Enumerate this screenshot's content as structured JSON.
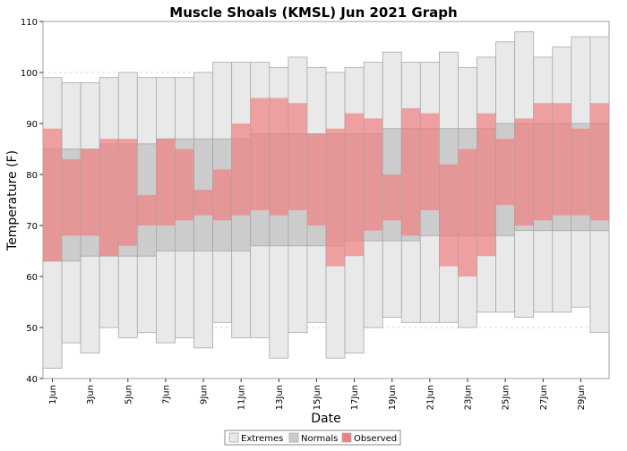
{
  "chart_data": {
    "type": "bar",
    "title": "Muscle Shoals (KMSL) Jun 2021 Graph",
    "xlabel": "Date",
    "ylabel": "Temperature (F)",
    "ylim": [
      40,
      110
    ],
    "yticks": [
      40,
      50,
      60,
      70,
      80,
      90,
      100,
      110
    ],
    "grid": true,
    "legend_placement": "bottom-center",
    "categories": [
      "1Jun",
      "2Jun",
      "3Jun",
      "4Jun",
      "5Jun",
      "6Jun",
      "7Jun",
      "8Jun",
      "9Jun",
      "10Jun",
      "11Jun",
      "12Jun",
      "13Jun",
      "14Jun",
      "15Jun",
      "16Jun",
      "17Jun",
      "18Jun",
      "19Jun",
      "20Jun",
      "21Jun",
      "22Jun",
      "23Jun",
      "24Jun",
      "25Jun",
      "26Jun",
      "27Jun",
      "28Jun",
      "29Jun",
      "30Jun"
    ],
    "tick_labels": [
      "1Jun",
      "3Jun",
      "5Jun",
      "7Jun",
      "9Jun",
      "11Jun",
      "13Jun",
      "15Jun",
      "17Jun",
      "19Jun",
      "21Jun",
      "23Jun",
      "25Jun",
      "27Jun",
      "29Jun"
    ],
    "colors": {
      "extremes": "#e9e9e9",
      "normals": "#cccccc",
      "observed": "#f08080",
      "grid": "#d8d8d8",
      "border": "#a9a9a9"
    },
    "series": [
      {
        "name": "Extremes",
        "high": [
          99,
          98,
          98,
          99,
          100,
          99,
          99,
          99,
          100,
          102,
          102,
          102,
          101,
          103,
          101,
          100,
          101,
          102,
          104,
          102,
          102,
          104,
          101,
          103,
          106,
          108,
          103,
          105,
          107,
          107
        ],
        "low": [
          42,
          47,
          45,
          50,
          48,
          49,
          47,
          48,
          46,
          51,
          48,
          48,
          44,
          49,
          51,
          44,
          45,
          50,
          52,
          51,
          51,
          51,
          50,
          53,
          53,
          52,
          53,
          53,
          54,
          49
        ]
      },
      {
        "name": "Normals",
        "high": [
          85,
          85,
          85,
          86,
          86,
          86,
          87,
          87,
          87,
          87,
          87,
          88,
          88,
          88,
          88,
          88,
          88,
          88,
          89,
          89,
          89,
          89,
          89,
          89,
          90,
          90,
          90,
          90,
          90,
          90
        ],
        "low": [
          63,
          63,
          64,
          64,
          64,
          64,
          65,
          65,
          65,
          65,
          65,
          66,
          66,
          66,
          66,
          66,
          67,
          67,
          67,
          67,
          68,
          68,
          68,
          68,
          68,
          69,
          69,
          69,
          69,
          69
        ]
      },
      {
        "name": "Observed",
        "high": [
          89,
          83,
          85,
          87,
          87,
          76,
          87,
          85,
          77,
          81,
          90,
          95,
          95,
          94,
          88,
          89,
          92,
          91,
          80,
          93,
          92,
          82,
          85,
          92,
          87,
          91,
          94,
          94,
          89,
          94
        ],
        "low": [
          63,
          68,
          68,
          64,
          66,
          70,
          70,
          71,
          72,
          71,
          72,
          73,
          72,
          73,
          70,
          62,
          64,
          69,
          71,
          68,
          73,
          62,
          60,
          64,
          74,
          70,
          71,
          72,
          72,
          71
        ]
      }
    ]
  }
}
